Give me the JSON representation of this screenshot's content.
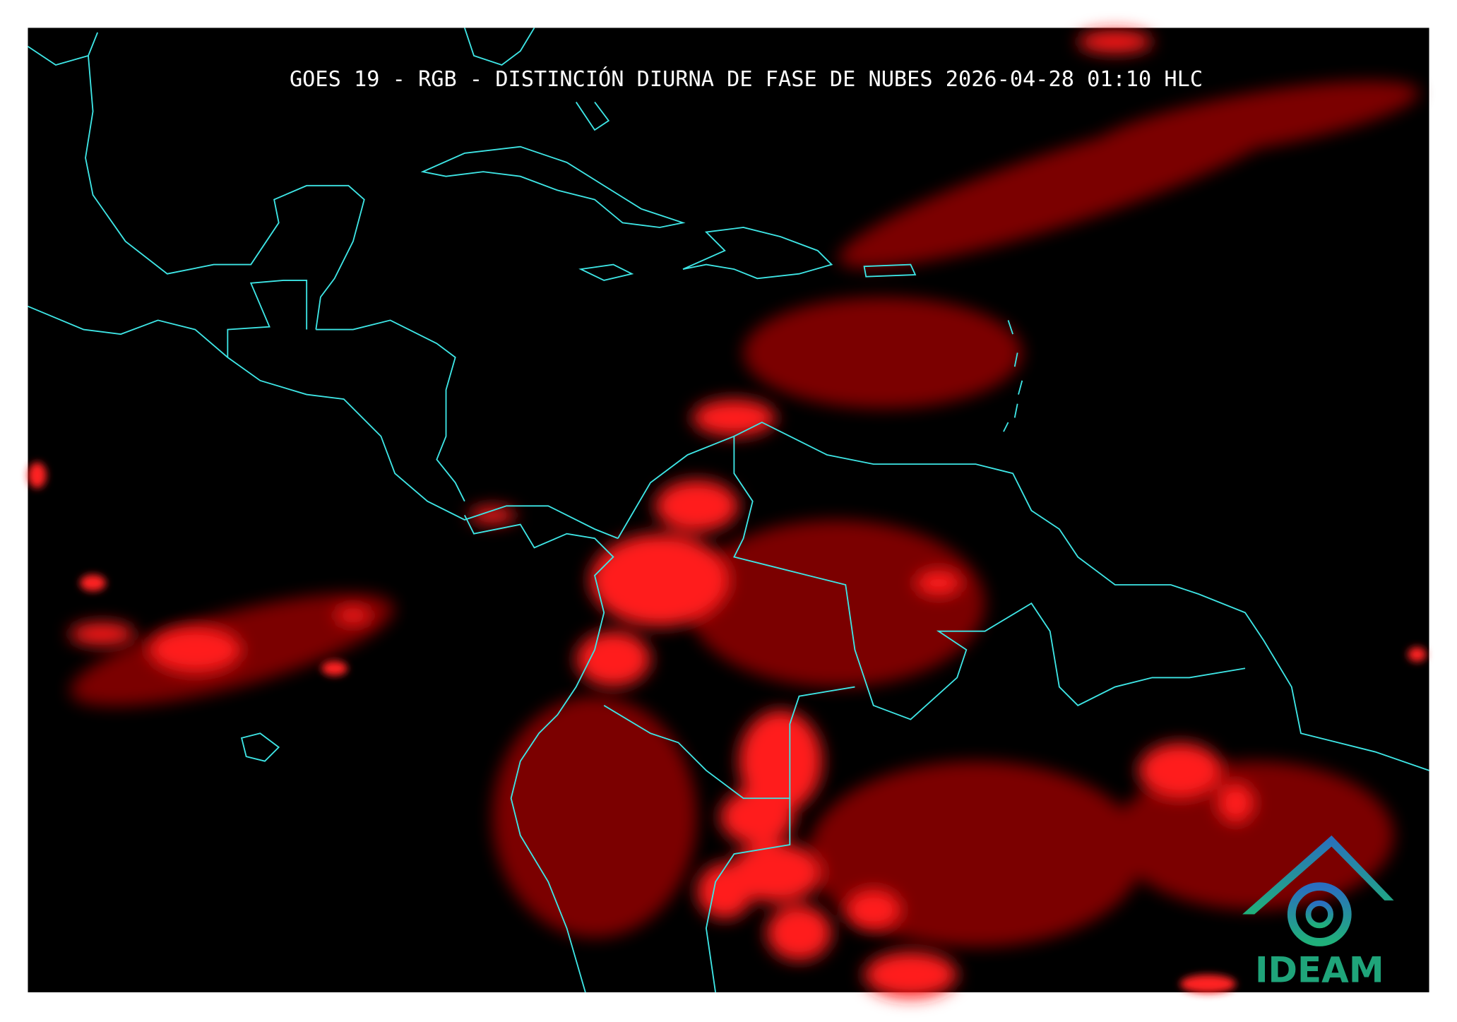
{
  "header": {
    "title": "GOES 19 - RGB - DISTINCIÓN DIURNA DE FASE DE NUBES 2026-04-28 01:10 HLC"
  },
  "logo": {
    "label": "IDEAM"
  }
}
